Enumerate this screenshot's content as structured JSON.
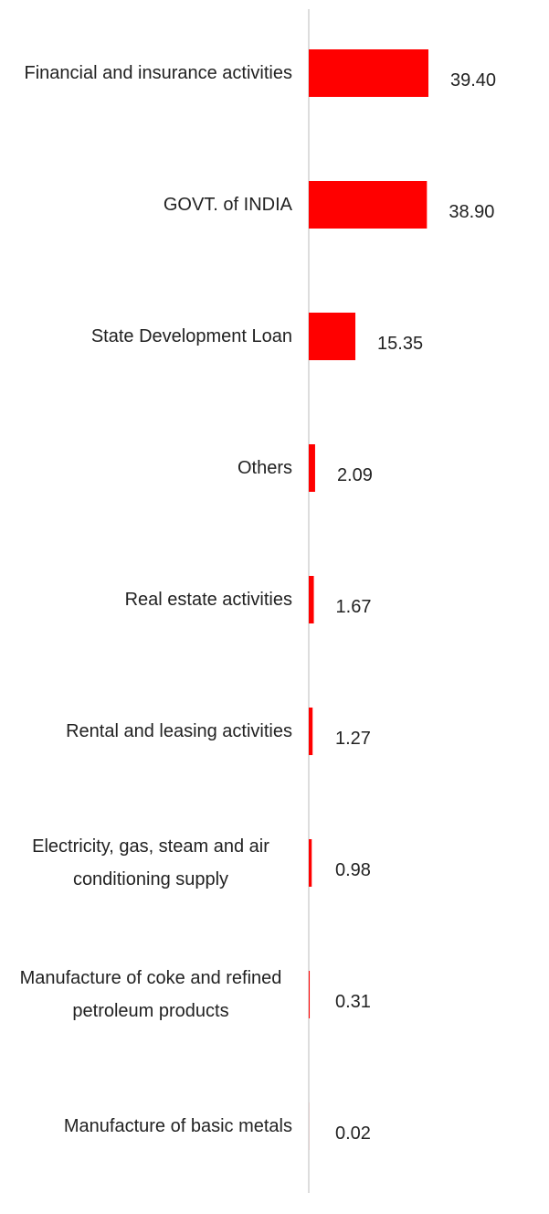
{
  "chart_data": {
    "type": "bar",
    "orientation": "horizontal",
    "categories": [
      "Financial and insurance activities",
      "GOVT. of INDIA",
      "State Development Loan",
      "Others",
      "Real estate activities",
      "Rental and leasing activities",
      "Electricity, gas, steam and air conditioning supply",
      "Manufacture of coke and refined petroleum products",
      "Manufacture of basic metals"
    ],
    "values": [
      39.4,
      38.9,
      15.35,
      2.09,
      1.67,
      1.27,
      0.98,
      0.31,
      0.02
    ],
    "value_labels": [
      "39.40",
      "38.90",
      "15.35",
      "2.09",
      "1.67",
      "1.27",
      "0.98",
      "0.31",
      "0.02"
    ],
    "color": "#ff0000"
  }
}
